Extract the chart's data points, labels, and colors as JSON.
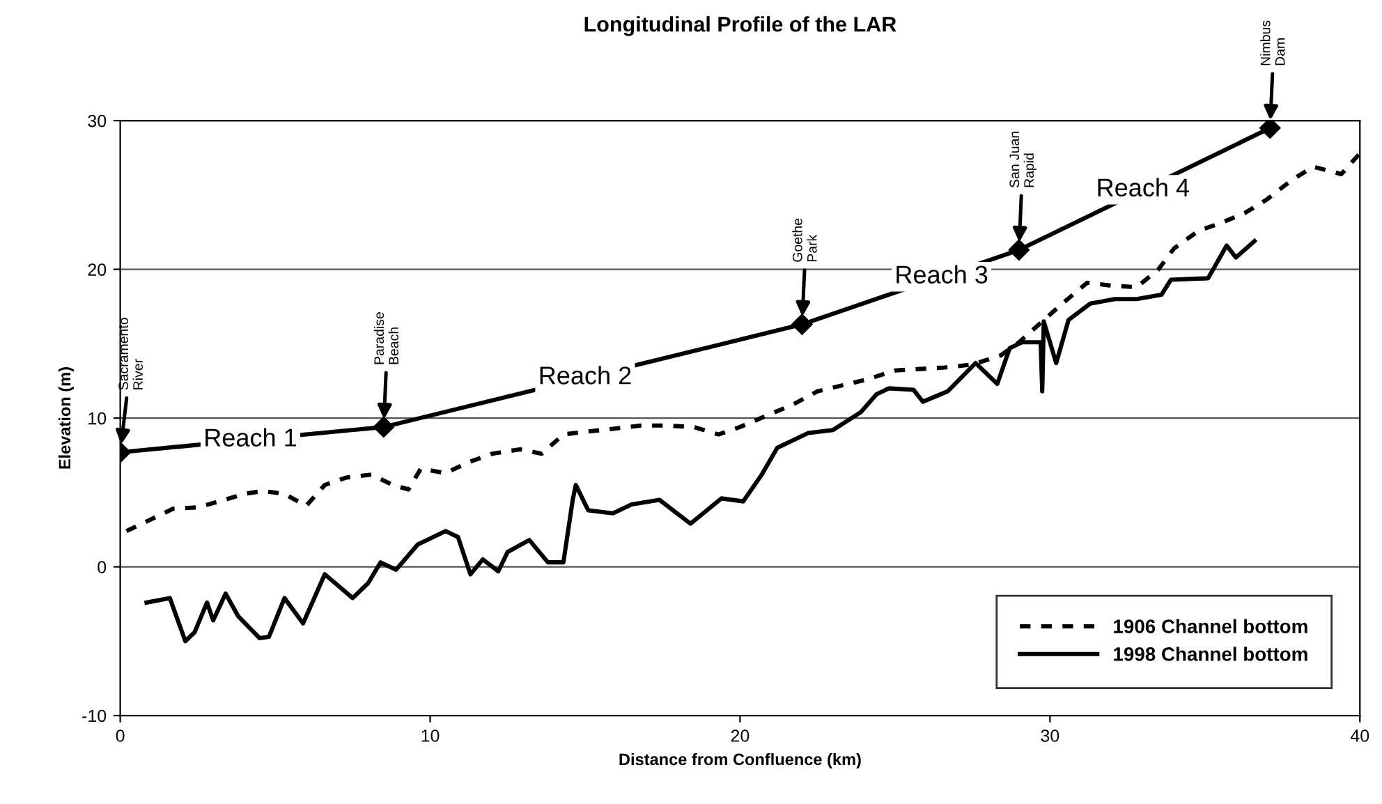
{
  "chart_data": {
    "type": "line",
    "title": "Longitudinal Profile of the LAR",
    "xlabel": "Distance from Confluence (km)",
    "ylabel": "Elevation (m)",
    "xlim": [
      0,
      40
    ],
    "xticks": [
      0,
      10,
      20,
      30,
      40
    ],
    "ylim": [
      -10,
      30
    ],
    "yticks": [
      -10,
      0,
      10,
      20,
      30
    ],
    "grid": "y",
    "legend": "bottom right",
    "series": [
      {
        "name": "1906 Channel bottom",
        "color": "#000000",
        "line_style": "dashed",
        "marker": "none",
        "x": [
          0.2,
          0.9,
          1.7,
          2.5,
          3.2,
          4.0,
          4.6,
          5.3,
          6.0,
          6.6,
          7.3,
          8.1,
          8.8,
          9.3,
          9.7,
          10.5,
          11.2,
          12.0,
          12.9,
          13.6,
          14.3,
          15.1,
          16.0,
          16.8,
          17.6,
          18.5,
          19.3,
          20.0,
          20.9,
          21.7,
          22.5,
          23.3,
          24.1,
          25.0,
          25.8,
          26.6,
          27.5,
          28.4,
          29.0,
          30.4,
          31.2,
          32.0,
          32.8,
          33.5,
          34.0,
          34.8,
          35.5,
          36.3,
          37.0,
          37.8,
          38.5,
          39.4,
          40.0
        ],
        "values": [
          2.4,
          3.1,
          3.9,
          4.0,
          4.4,
          4.9,
          5.1,
          4.9,
          4.1,
          5.5,
          6.0,
          6.2,
          5.5,
          5.2,
          6.6,
          6.3,
          7.0,
          7.6,
          7.9,
          7.6,
          8.9,
          9.1,
          9.3,
          9.5,
          9.5,
          9.4,
          8.9,
          9.4,
          10.2,
          10.9,
          11.8,
          12.2,
          12.6,
          13.2,
          13.3,
          13.4,
          13.6,
          14.2,
          15.1,
          17.7,
          19.1,
          18.9,
          18.8,
          20.0,
          21.4,
          22.6,
          23.1,
          23.8,
          24.7,
          26.0,
          26.9,
          26.4,
          27.8
        ]
      },
      {
        "name": "1998 Channel bottom",
        "color": "#000000",
        "line_style": "solid",
        "marker": "none",
        "x": [
          0.85,
          1.6,
          2.1,
          2.4,
          2.8,
          3.0,
          3.4,
          3.8,
          4.5,
          4.8,
          5.3,
          5.9,
          6.6,
          7.5,
          8.0,
          8.4,
          8.9,
          9.6,
          10.5,
          10.9,
          11.3,
          11.7,
          12.2,
          12.5,
          13.2,
          13.8,
          14.3,
          14.6,
          14.7,
          15.1,
          15.9,
          16.5,
          17.4,
          18.4,
          19.4,
          20.1,
          20.7,
          21.2,
          22.2,
          23.0,
          23.9,
          24.4,
          24.8,
          25.6,
          25.9,
          26.7,
          27.6,
          28.3,
          28.7,
          29.1,
          29.7,
          29.75,
          29.8,
          30.2,
          30.6,
          31.3,
          32.1,
          32.8,
          33.6,
          33.9,
          35.1,
          35.7,
          36.0,
          36.6
        ],
        "values": [
          -2.4,
          -2.1,
          -5.0,
          -4.4,
          -2.4,
          -3.6,
          -1.8,
          -3.3,
          -4.8,
          -4.7,
          -2.1,
          -3.8,
          -0.5,
          -2.1,
          -1.1,
          0.3,
          -0.2,
          1.5,
          2.4,
          2.0,
          -0.5,
          0.5,
          -0.3,
          1.0,
          1.8,
          0.3,
          0.3,
          4.5,
          5.5,
          3.8,
          3.6,
          4.2,
          4.5,
          2.9,
          4.6,
          4.4,
          6.2,
          8.0,
          9.0,
          9.2,
          10.4,
          11.6,
          12.0,
          11.9,
          11.1,
          11.8,
          13.7,
          12.3,
          14.7,
          15.1,
          15.1,
          11.8,
          16.5,
          13.7,
          16.6,
          17.7,
          18.0,
          18.0,
          18.3,
          19.3,
          19.4,
          21.6,
          20.8,
          21.9
        ]
      },
      {
        "color": "#000000",
        "line_style": "solid",
        "marker": "diamond",
        "x": [
          0,
          8.5,
          22,
          29,
          37.1
        ],
        "values": [
          7.7,
          9.4,
          16.3,
          21.3,
          29.5
        ]
      }
    ],
    "annotations": [
      {
        "text": "Sacramento\nRiver",
        "x": 0,
        "y": 7.7
      },
      {
        "text": "Paradise\nBeach",
        "x": 8.5,
        "y": 9.4
      },
      {
        "text": "Goethe\nPark",
        "x": 22,
        "y": 16.3
      },
      {
        "text": "San Juan\nRapid",
        "x": 29,
        "y": 21.3
      },
      {
        "text": "Nimbus\nDam",
        "x": 37.1,
        "y": 29.5
      },
      {
        "text": "Reach 1",
        "x": 4.2,
        "y": 8.54
      },
      {
        "text": "Reach 2",
        "x": 15.0,
        "y": 12.72
      },
      {
        "text": "Reach 3",
        "x": 26.5,
        "y": 19.5
      },
      {
        "text": "Reach 4",
        "x": 33.0,
        "y": 25.35
      }
    ]
  }
}
